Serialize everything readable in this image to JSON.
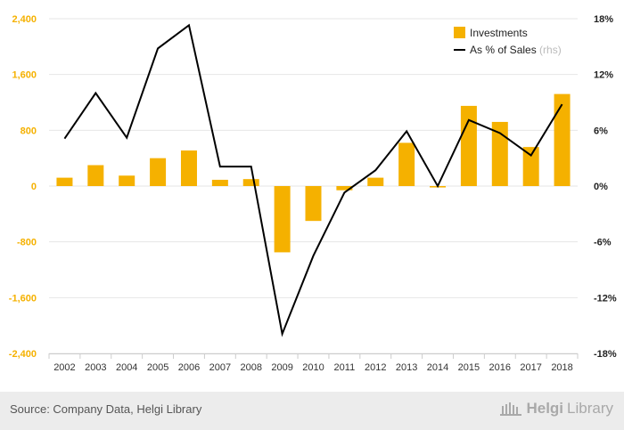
{
  "chart_data": {
    "type": "bar",
    "categories": [
      "2002",
      "2003",
      "2004",
      "2005",
      "2006",
      "2007",
      "2008",
      "2009",
      "2010",
      "2011",
      "2012",
      "2013",
      "2014",
      "2015",
      "2016",
      "2017",
      "2018"
    ],
    "series": [
      {
        "name": "Investments",
        "type": "bar",
        "axis": "left",
        "color": "#f5b100",
        "values": [
          120,
          300,
          150,
          400,
          510,
          90,
          100,
          -950,
          -500,
          -60,
          120,
          620,
          -20,
          1150,
          920,
          560,
          1320
        ]
      },
      {
        "name": "As % of Sales",
        "legend_suffix": "(rhs)",
        "type": "line",
        "axis": "right",
        "color": "#000000",
        "values": [
          5.1,
          10.0,
          5.2,
          14.8,
          17.3,
          2.1,
          2.1,
          -15.9,
          -7.5,
          -0.7,
          1.7,
          5.9,
          0.0,
          7.1,
          5.7,
          3.3,
          8.8
        ]
      }
    ],
    "y_left": {
      "ticks": [
        "2,400",
        "1,600",
        "800",
        "0",
        "-800",
        "-1,600",
        "-2,400"
      ],
      "tick_values": [
        2400,
        1600,
        800,
        0,
        -800,
        -1600,
        -2400
      ],
      "ylim": [
        -2400,
        2400
      ],
      "tick_color": "#f5b100"
    },
    "y_right": {
      "ticks": [
        "18%",
        "12%",
        "6%",
        "0%",
        "-6%",
        "-12%",
        "-18%"
      ],
      "tick_values": [
        18,
        12,
        6,
        0,
        -6,
        -12,
        -18
      ],
      "ylim": [
        -18,
        18
      ]
    },
    "grid": true,
    "legend_position": "top-right"
  },
  "footer": {
    "source": "Source: Company Data, Helgi Library",
    "brand_bold": "Helgi",
    "brand_light": "Library"
  }
}
